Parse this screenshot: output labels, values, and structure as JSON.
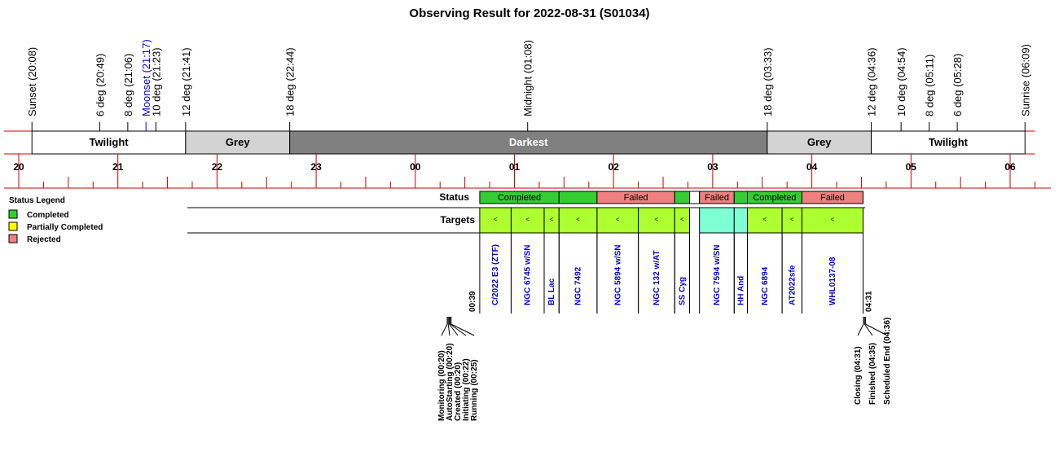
{
  "title": "Observing Result for 2022-08-31 (S01034)",
  "colors": {
    "twilight": "#ffffff",
    "grey": "#d3d3d3",
    "darkest": "#808080",
    "completed": "#33cc33",
    "failed": "#f08080",
    "target": "#adff2f",
    "target_alt": "#7fffd4",
    "axis": "#cc0000",
    "link_text": "#0000cc"
  },
  "chart_data": {
    "type": "timeline",
    "time_axis": {
      "start_hour": 19.85,
      "end_hour": 30.25,
      "tick_labels": [
        "20",
        "21",
        "22",
        "23",
        "00",
        "01",
        "02",
        "03",
        "04",
        "05",
        "06"
      ]
    },
    "events": [
      {
        "label": "Sunset (20:08)",
        "time": "20:08",
        "color": "black"
      },
      {
        "label": "6 deg (20:49)",
        "time": "20:49",
        "color": "black"
      },
      {
        "label": "8 deg (21:06)",
        "time": "21:06",
        "color": "black"
      },
      {
        "label": "Moonset (21:17)",
        "time": "21:17",
        "color": "blue"
      },
      {
        "label": "10 deg (21:23)",
        "time": "21:23",
        "color": "black"
      },
      {
        "label": "12 deg (21:41)",
        "time": "21:41",
        "color": "black"
      },
      {
        "label": "18 deg (22:44)",
        "time": "22:44",
        "color": "black"
      },
      {
        "label": "Midnight (01:08)",
        "time": "01:08",
        "color": "black"
      },
      {
        "label": "18 deg (03:33)",
        "time": "03:33",
        "color": "black"
      },
      {
        "label": "12 deg (04:36)",
        "time": "04:36",
        "color": "black"
      },
      {
        "label": "10 deg (04:54)",
        "time": "04:54",
        "color": "black"
      },
      {
        "label": "8 deg (05:11)",
        "time": "05:11",
        "color": "black"
      },
      {
        "label": "6 deg (05:28)",
        "time": "05:28",
        "color": "black"
      },
      {
        "label": "Sunrise (06:09)",
        "time": "06:09",
        "color": "black"
      }
    ],
    "sky_bands": [
      {
        "label": "Twilight",
        "start": "20:08",
        "end": "21:41",
        "kind": "twilight"
      },
      {
        "label": "Grey",
        "start": "21:41",
        "end": "22:44",
        "kind": "grey"
      },
      {
        "label": "Darkest",
        "start": "22:44",
        "end": "03:33",
        "kind": "darkest"
      },
      {
        "label": "Grey",
        "start": "03:33",
        "end": "04:36",
        "kind": "grey"
      },
      {
        "label": "Twilight",
        "start": "04:36",
        "end": "06:09",
        "kind": "twilight"
      }
    ],
    "legend": {
      "title": "Status Legend",
      "items": [
        {
          "label": "Completed",
          "color": "#33cc33"
        },
        {
          "label": "Partially Completed",
          "color": "#ffff00"
        },
        {
          "label": "Rejected",
          "color": "#f08080"
        }
      ]
    },
    "row_labels": {
      "status": "Status",
      "targets": "Targets"
    },
    "status_blocks": [
      {
        "label": "Completed",
        "start": "00:39",
        "end": "01:27",
        "state": "completed"
      },
      {
        "label": "",
        "start": "01:27",
        "end": "01:50",
        "state": "completed"
      },
      {
        "label": "Failed",
        "start": "01:50",
        "end": "02:37",
        "state": "failed"
      },
      {
        "label": "",
        "start": "02:37",
        "end": "02:46",
        "state": "completed"
      },
      {
        "label": "",
        "start": "02:46",
        "end": "02:52",
        "state": "empty"
      },
      {
        "label": "Failed",
        "start": "02:52",
        "end": "03:13",
        "state": "failed"
      },
      {
        "label": "",
        "start": "03:13",
        "end": "03:21",
        "state": "completed"
      },
      {
        "label": "Completed",
        "start": "03:21",
        "end": "03:54",
        "state": "completed"
      },
      {
        "label": "Failed",
        "start": "03:54",
        "end": "04:31",
        "state": "failed"
      }
    ],
    "targets": [
      {
        "name": "C/2022 E3 (ZTF)",
        "start": "00:39",
        "end": "00:58",
        "kind": "normal"
      },
      {
        "name": "NGC 6745 w/SN",
        "start": "00:58",
        "end": "01:18",
        "kind": "normal"
      },
      {
        "name": "BL Lac",
        "start": "01:18",
        "end": "01:27",
        "kind": "normal"
      },
      {
        "name": "NGC 7492",
        "start": "01:27",
        "end": "01:50",
        "kind": "normal"
      },
      {
        "name": "NGC 5894 w/SN",
        "start": "01:50",
        "end": "02:15",
        "kind": "normal"
      },
      {
        "name": "NGC 132 w/AT",
        "start": "02:15",
        "end": "02:37",
        "kind": "normal"
      },
      {
        "name": "SS Cyg",
        "start": "02:37",
        "end": "02:46",
        "kind": "normal"
      },
      {
        "name": "NGC 7594 w/SN",
        "start": "02:52",
        "end": "03:13",
        "kind": "alt"
      },
      {
        "name": "HH And",
        "start": "03:13",
        "end": "03:21",
        "kind": "alt"
      },
      {
        "name": "NGC 6894",
        "start": "03:21",
        "end": "03:42",
        "kind": "normal"
      },
      {
        "name": "AT2022sfe",
        "start": "03:42",
        "end": "03:54",
        "kind": "normal"
      },
      {
        "name": "WHL0137-08",
        "start": "03:54",
        "end": "04:31",
        "kind": "normal"
      }
    ],
    "boundary_labels": [
      {
        "label": "00:39",
        "time": "00:39"
      },
      {
        "label": "04:31",
        "time": "04:31"
      }
    ],
    "lifecycle_start": [
      {
        "label": "Monitoring (00:20)",
        "time": "00:20"
      },
      {
        "label": "AutoStarting (00:20)",
        "time": "00:20"
      },
      {
        "label": "Created (00:20)",
        "time": "00:20"
      },
      {
        "label": "Initiating (00:22)",
        "time": "00:22"
      },
      {
        "label": "Running (00:25)",
        "time": "00:25"
      }
    ],
    "lifecycle_end": [
      {
        "label": "Closing (04:31)",
        "time": "04:31"
      },
      {
        "label": "Finished (04:35)",
        "time": "04:35"
      },
      {
        "label": "Scheduled End (04:36)",
        "time": "04:36"
      }
    ]
  }
}
